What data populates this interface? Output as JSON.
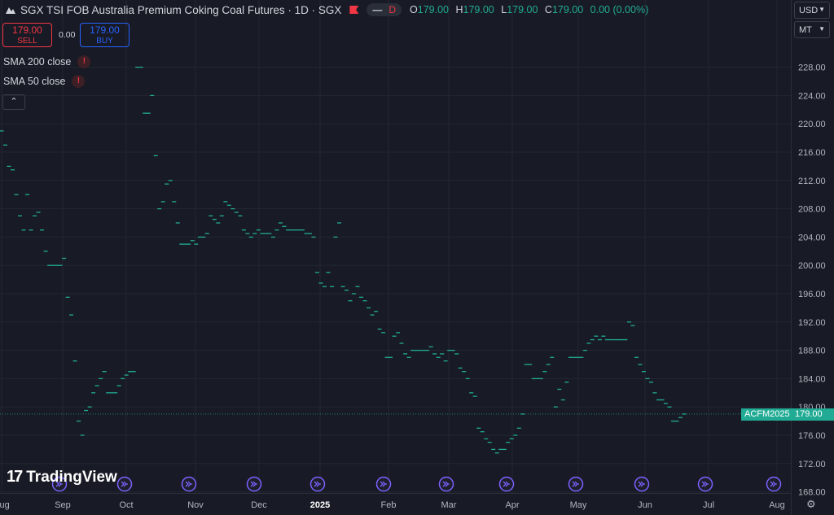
{
  "header": {
    "title": "SGX TSI FOB Australia Premium Coking Coal Futures · 1D · SGX",
    "d_badge": "D",
    "ohlc": [
      {
        "k": "O",
        "v": "179.00"
      },
      {
        "k": "H",
        "v": "179.00"
      },
      {
        "k": "L",
        "v": "179.00"
      },
      {
        "k": "C",
        "v": "179.00"
      },
      {
        "k": "",
        "v": "0.00 (0.00%)"
      }
    ]
  },
  "trade": {
    "sell_price": "179.00",
    "sell_label": "SELL",
    "spread": "0.00",
    "buy_price": "179.00",
    "buy_label": "BUY"
  },
  "indicators": [
    "SMA 200 close",
    "SMA 50 close"
  ],
  "currency": "USD",
  "unit": "MT",
  "brand": "TradingView",
  "colors": {
    "up": "#22ab94",
    "down": "#f23645",
    "buy": "#2962ff",
    "events": "#7b61ff"
  },
  "chart_data": {
    "type": "line",
    "style": "dash markers (high-low ticks of flat daily bars)",
    "symbol_label": "ACFM2025",
    "last_price": "179.00",
    "y_ticks": [
      228,
      224,
      220,
      216,
      212,
      208,
      204,
      200,
      196,
      192,
      188,
      184,
      180,
      176,
      172,
      168
    ],
    "ylim": [
      167.5,
      231.5
    ],
    "x_ticks": [
      "Aug",
      "Sep",
      "Oct",
      "Nov",
      "Dec",
      "2025",
      "Feb",
      "Mar",
      "Apr",
      "May",
      "Jun",
      "Jul",
      "Aug"
    ],
    "events_count": 12,
    "series": [
      {
        "values": [
          219,
          217,
          214,
          213.5,
          210,
          207,
          205,
          210,
          205,
          207,
          207.5,
          205,
          202,
          200,
          200,
          200,
          200,
          201,
          195.5,
          193,
          186.5,
          178,
          176,
          179.5,
          180,
          182,
          183,
          184,
          185,
          182,
          182,
          182,
          183,
          184,
          184.5,
          185,
          185,
          228,
          228,
          221.5,
          221.5,
          224,
          215.5,
          208,
          209,
          211.5,
          212,
          209,
          206,
          203,
          203,
          203,
          203.5,
          203,
          204,
          204,
          204.5,
          207,
          206.5,
          206,
          207,
          209,
          208.5,
          208,
          207.5,
          207,
          205,
          204.5,
          204,
          204.5,
          205,
          204.5,
          204.5,
          204.5,
          204,
          205,
          206,
          205.5,
          205,
          205,
          205,
          205,
          205,
          204.5,
          204.5,
          204,
          199,
          197.5,
          197,
          199,
          197,
          204,
          206,
          197,
          196.5,
          195,
          196,
          197,
          195.5,
          195,
          194,
          193,
          193.5,
          191,
          190.5,
          187,
          187,
          190,
          190.5,
          189,
          187.5,
          187,
          188,
          188,
          188,
          188,
          188,
          188.5,
          187.5,
          187,
          187.5,
          186.5,
          188,
          188,
          187.5,
          185.5,
          185,
          184,
          182,
          181.5,
          177,
          176.5,
          175.5,
          175,
          174,
          173.5,
          174,
          174,
          175,
          175.5,
          176,
          177,
          179,
          186,
          186,
          184,
          184,
          184,
          185,
          186,
          187,
          180,
          182.5,
          181,
          183.5,
          187,
          187,
          187,
          187,
          188,
          189,
          189.5,
          190,
          189.5,
          190,
          189.5,
          189.5,
          189.5,
          189.5,
          189.5,
          189.5,
          192,
          191.5,
          187,
          186,
          185,
          184,
          183.5,
          182,
          181,
          181,
          180.5,
          180,
          178,
          178,
          178.5,
          179
        ]
      }
    ]
  }
}
